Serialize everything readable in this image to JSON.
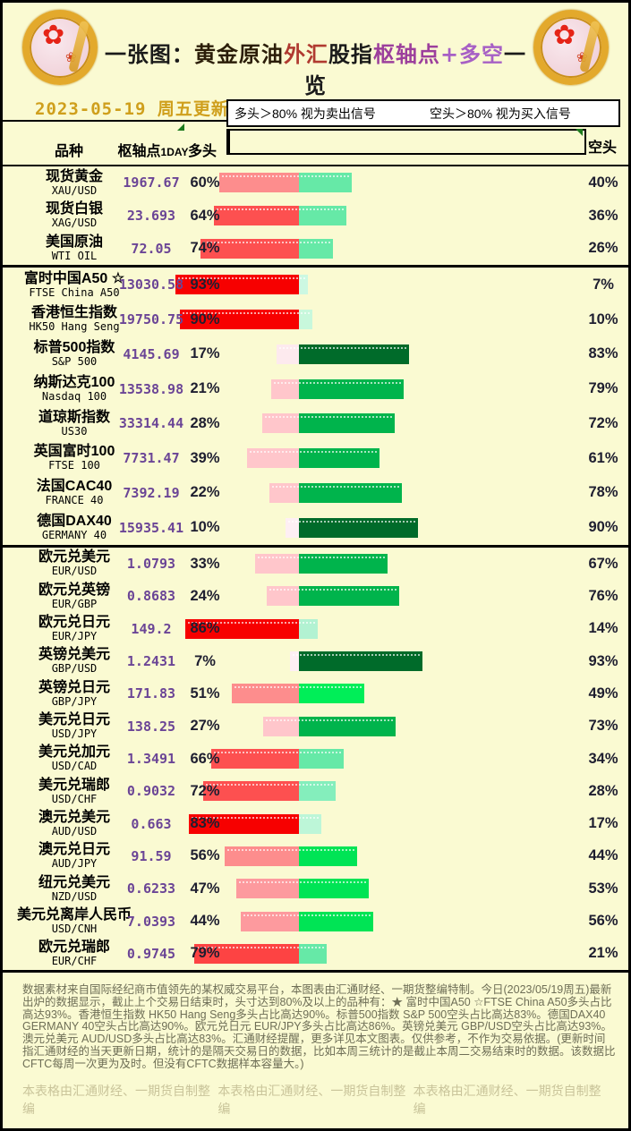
{
  "header": {
    "title_segments": [
      {
        "text": "一张图：",
        "color": "#1a1a1a"
      },
      {
        "text": "黄金原油",
        "color": "#2b1d08"
      },
      {
        "text": "外汇",
        "color": "#b03a30"
      },
      {
        "text": "股指",
        "color": "#1a1a1a"
      },
      {
        "text": "枢轴点",
        "color": "#9c3f9c"
      },
      {
        "text": "+多空",
        "color": "#a760c5"
      },
      {
        "text": "一览",
        "color": "#1a1a1a"
      }
    ],
    "date_text": "2023-05-19 周五更新",
    "logo_flower": "✿",
    "logo_flower_small": "❀"
  },
  "legend": {
    "long_note": "多头＞80% 视为卖出信号",
    "short_note": "空头＞80% 视为买入信号",
    "scale_colors": [
      "#d60000",
      "#fd4b4b",
      "#fd8e8e",
      "#ffc3c8",
      "#fde4ea",
      "#c6fbda",
      "#5ffda1",
      "#00ee52",
      "#00b04a",
      "#006e2e"
    ]
  },
  "table_headers": {
    "symbol": "品种",
    "pivot_main": "枢轴点",
    "pivot_sub": "1DAY",
    "long": "多头",
    "short": "空头"
  },
  "chart_data": {
    "type": "bar",
    "orientation": "horizontal-diverging",
    "title": "一张图：黄金原油外汇股指枢轴点+多空一览",
    "series_labels": {
      "long": "多头",
      "short": "空头"
    },
    "value_unit": "%",
    "axis_range": [
      0,
      100
    ],
    "sections": [
      {
        "name": "commodities",
        "rows": [
          {
            "name_cn": "现货黄金",
            "name_en": "XAU/USD",
            "pivot": "1967.67",
            "long_pct": 60,
            "short_pct": 40,
            "long_color": "#fd8d8d",
            "short_color": "#66e9a7"
          },
          {
            "name_cn": "现货白银",
            "name_en": "XAG/USD",
            "pivot": "23.693",
            "long_pct": 64,
            "short_pct": 36,
            "long_color": "#fd5050",
            "short_color": "#66e9a7"
          },
          {
            "name_cn": "美国原油",
            "name_en": "WTI OIL",
            "pivot": "72.05",
            "long_pct": 74,
            "short_pct": 26,
            "long_color": "#fd5050",
            "short_color": "#66e9a7"
          }
        ]
      },
      {
        "name": "indices",
        "rows": [
          {
            "name_cn": "富时中国A50 ☆",
            "name_en": "FTSE China A50",
            "pivot": "13030.58",
            "long_pct": 93,
            "short_pct": 7,
            "long_color": "#f70000",
            "short_color": "#ccf8e2"
          },
          {
            "name_cn": "香港恒生指数",
            "name_en": "HK50 Hang Seng",
            "pivot": "19750.75",
            "long_pct": 90,
            "short_pct": 10,
            "long_color": "#f70000",
            "short_color": "#c8f8dc"
          },
          {
            "name_cn": "标普500指数",
            "name_en": "S&P 500",
            "pivot": "4145.69",
            "long_pct": 17,
            "short_pct": 83,
            "long_color": "#fdeaee",
            "short_color": "#006b2a"
          },
          {
            "name_cn": "纳斯达克100",
            "name_en": "Nasdaq 100",
            "pivot": "13538.98",
            "long_pct": 21,
            "short_pct": 79,
            "long_color": "#ffc6cb",
            "short_color": "#00b44c"
          },
          {
            "name_cn": "道琼斯指数",
            "name_en": "US30",
            "pivot": "33314.44",
            "long_pct": 28,
            "short_pct": 72,
            "long_color": "#ffc6cb",
            "short_color": "#00b44c"
          },
          {
            "name_cn": "英国富时100",
            "name_en": "FTSE 100",
            "pivot": "7731.47",
            "long_pct": 39,
            "short_pct": 61,
            "long_color": "#ffc6cb",
            "short_color": "#00b44c"
          },
          {
            "name_cn": "法国CAC40",
            "name_en": "FRANCE 40",
            "pivot": "7392.19",
            "long_pct": 22,
            "short_pct": 78,
            "long_color": "#ffc6cb",
            "short_color": "#00b44c"
          },
          {
            "name_cn": "德国DAX40",
            "name_en": "GERMANY 40",
            "pivot": "15935.41",
            "long_pct": 10,
            "short_pct": 90,
            "long_color": "#feeff4",
            "short_color": "#006b2a"
          }
        ]
      },
      {
        "name": "forex",
        "rows": [
          {
            "name_cn": "欧元兑美元",
            "name_en": "EUR/USD",
            "pivot": "1.0793",
            "long_pct": 33,
            "short_pct": 67,
            "long_color": "#ffc6cb",
            "short_color": "#00b44c"
          },
          {
            "name_cn": "欧元兑英镑",
            "name_en": "EUR/GBP",
            "pivot": "0.8683",
            "long_pct": 24,
            "short_pct": 76,
            "long_color": "#ffc6cb",
            "short_color": "#00b44c"
          },
          {
            "name_cn": "欧元兑日元",
            "name_en": "EUR/JPY",
            "pivot": "149.2",
            "long_pct": 86,
            "short_pct": 14,
            "long_color": "#f70000",
            "short_color": "#b2f2d2"
          },
          {
            "name_cn": "英镑兑美元",
            "name_en": "GBP/USD",
            "pivot": "1.2431",
            "long_pct": 7,
            "short_pct": 93,
            "long_color": "#feeff4",
            "short_color": "#006b2a"
          },
          {
            "name_cn": "英镑兑日元",
            "name_en": "GBP/JPY",
            "pivot": "171.83",
            "long_pct": 51,
            "short_pct": 49,
            "long_color": "#fd8d8d",
            "short_color": "#00ee58"
          },
          {
            "name_cn": "美元兑日元",
            "name_en": "USD/JPY",
            "pivot": "138.25",
            "long_pct": 27,
            "short_pct": 73,
            "long_color": "#ffc6cb",
            "short_color": "#00b44c"
          },
          {
            "name_cn": "美元兑加元",
            "name_en": "USD/CAD",
            "pivot": "1.3491",
            "long_pct": 66,
            "short_pct": 34,
            "long_color": "#fd5050",
            "short_color": "#66e9a7"
          },
          {
            "name_cn": "美元兑瑞郎",
            "name_en": "USD/CHF",
            "pivot": "0.9032",
            "long_pct": 72,
            "short_pct": 28,
            "long_color": "#fd5050",
            "short_color": "#84eebc"
          },
          {
            "name_cn": "澳元兑美元",
            "name_en": "AUD/USD",
            "pivot": "0.663",
            "long_pct": 83,
            "short_pct": 17,
            "long_color": "#f70000",
            "short_color": "#bdf6d8"
          },
          {
            "name_cn": "澳元兑日元",
            "name_en": "AUD/JPY",
            "pivot": "91.59",
            "long_pct": 56,
            "short_pct": 44,
            "long_color": "#fd8d8d",
            "short_color": "#00e455"
          },
          {
            "name_cn": "纽元兑美元",
            "name_en": "NZD/USD",
            "pivot": "0.6233",
            "long_pct": 47,
            "short_pct": 53,
            "long_color": "#fd9a9e",
            "short_color": "#00e455"
          },
          {
            "name_cn": "美元兑离岸人民币",
            "name_en": "USD/CNH",
            "pivot": "7.0393",
            "long_pct": 44,
            "short_pct": 56,
            "long_color": "#fd9a9e",
            "short_color": "#00e455"
          },
          {
            "name_cn": "欧元兑瑞郎",
            "name_en": "EUR/CHF",
            "pivot": "0.9745",
            "long_pct": 79,
            "short_pct": 21,
            "long_color": "#fd4343",
            "short_color": "#66e9a7"
          }
        ]
      }
    ]
  },
  "footer": {
    "paragraph": "数据素材来自国际经纪商市值领先的某权威交易平台，本图表由汇通财经、一期货整编特制。今日(2023/05/19周五)最新出炉的数据显示，截止上个交易日结束时，头寸达到80%及以上的品种有：★ 富时中国A50 ☆FTSE China A50多头占比高达93%。香港恒生指数 HK50 Hang Seng多头占比高达90%。标普500指数 S&P 500空头占比高达83%。德国DAX40 GERMANY 40空头占比高达90%。欧元兑日元 EUR/JPY多头占比高达86%。英镑兑美元 GBP/USD空头占比高达93%。澳元兑美元 AUD/USD多头占比高达83%。汇通财经提醒，更多详见本文图表。仅供参考，不作为交易依据。(更新时间指汇通财经的当天更新日期，统计的是隔天交易日的数据，比如本周三统计的是截止本周二交易结束时的数据。该数据比CFTC每周一次更为及时。但没有CFTC数据样本容量大。)",
    "watermark": "本表格由汇通财经、一期货自制整编"
  }
}
